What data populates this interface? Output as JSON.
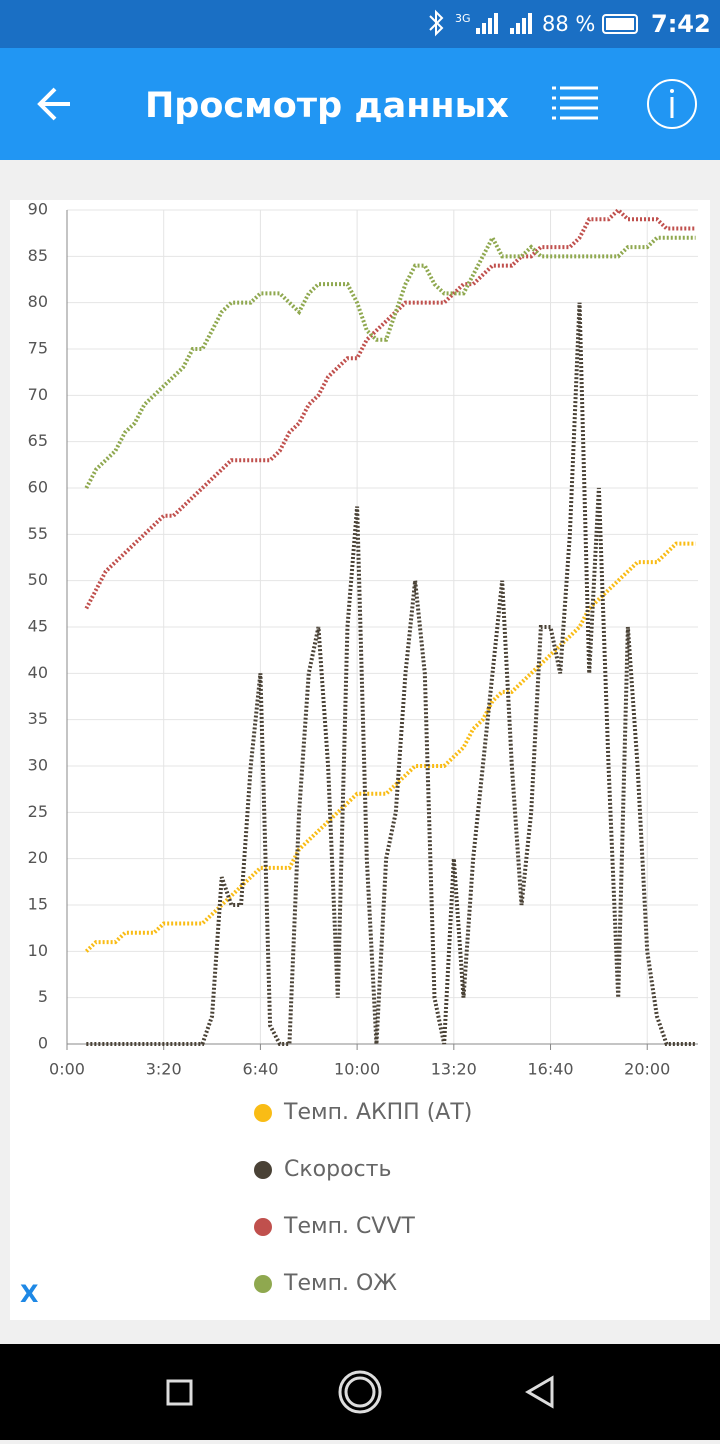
{
  "status_bar": {
    "network": "3G",
    "battery": "88 %",
    "time": "7:42"
  },
  "app_bar": {
    "title": "Просмотр данных"
  },
  "close_button": "X",
  "chart_data": {
    "type": "line",
    "x": [
      40,
      60,
      80,
      100,
      120,
      140,
      160,
      180,
      200,
      220,
      240,
      260,
      280,
      300,
      320,
      340,
      360,
      380,
      400,
      420,
      440,
      460,
      480,
      500,
      520,
      540,
      560,
      580,
      600,
      620,
      640,
      660,
      680,
      700,
      720,
      740,
      760,
      780,
      800,
      820,
      840,
      860,
      880,
      900,
      920,
      940,
      960,
      980,
      1000,
      1020,
      1040,
      1060,
      1080,
      1100,
      1120,
      1140,
      1160,
      1180,
      1200,
      1220,
      1240,
      1260,
      1280,
      1300
    ],
    "series": [
      {
        "name": "Темп. АКПП (АТ)",
        "color": "#f9bc15",
        "values": [
          10,
          11,
          11,
          11,
          12,
          12,
          12,
          12,
          13,
          13,
          13,
          13,
          13,
          14,
          15,
          16,
          17,
          18,
          19,
          19,
          19,
          19,
          21,
          22,
          23,
          24,
          25,
          26,
          27,
          27,
          27,
          27,
          28,
          29,
          30,
          30,
          30,
          30,
          31,
          32,
          34,
          35,
          37,
          38,
          38,
          39,
          40,
          41,
          42,
          43,
          44,
          45,
          47,
          48,
          49,
          50,
          51,
          52,
          52,
          52,
          53,
          54,
          54,
          54
        ]
      },
      {
        "name": "Скорость",
        "color": "#4a4236",
        "values": [
          0,
          0,
          0,
          0,
          0,
          0,
          0,
          0,
          0,
          0,
          0,
          0,
          0,
          3,
          18,
          15,
          15,
          30,
          40,
          2,
          0,
          0,
          25,
          40,
          45,
          30,
          5,
          45,
          58,
          20,
          0,
          20,
          25,
          40,
          50,
          40,
          5,
          0,
          20,
          5,
          20,
          30,
          40,
          50,
          30,
          15,
          25,
          45,
          45,
          40,
          55,
          80,
          40,
          60,
          30,
          5,
          45,
          30,
          10,
          3,
          0,
          0,
          0,
          0
        ]
      },
      {
        "name": "Темп. CVVT",
        "color": "#c0504d",
        "values": [
          47,
          49,
          51,
          52,
          53,
          54,
          55,
          56,
          57,
          57,
          58,
          59,
          60,
          61,
          62,
          63,
          63,
          63,
          63,
          63,
          64,
          66,
          67,
          69,
          70,
          72,
          73,
          74,
          74,
          76,
          77,
          78,
          79,
          80,
          80,
          80,
          80,
          80,
          81,
          82,
          82,
          83,
          84,
          84,
          84,
          85,
          85,
          86,
          86,
          86,
          86,
          87,
          89,
          89,
          89,
          90,
          89,
          89,
          89,
          89,
          88,
          88,
          88,
          88
        ]
      },
      {
        "name": "Темп. ОЖ",
        "color": "#8fa84f",
        "values": [
          60,
          62,
          63,
          64,
          66,
          67,
          69,
          70,
          71,
          72,
          73,
          75,
          75,
          77,
          79,
          80,
          80,
          80,
          81,
          81,
          81,
          80,
          79,
          81,
          82,
          82,
          82,
          82,
          80,
          77,
          76,
          76,
          79,
          82,
          84,
          84,
          82,
          81,
          81,
          81,
          83,
          85,
          87,
          85,
          85,
          85,
          86,
          85,
          85,
          85,
          85,
          85,
          85,
          85,
          85,
          85,
          86,
          86,
          86,
          87,
          87,
          87,
          87,
          87
        ]
      }
    ],
    "xlim": [
      0,
      1305
    ],
    "xticks": [
      {
        "value": 0,
        "label": "0:00"
      },
      {
        "value": 200,
        "label": "3:20"
      },
      {
        "value": 400,
        "label": "6:40"
      },
      {
        "value": 600,
        "label": "10:00"
      },
      {
        "value": 800,
        "label": "13:20"
      },
      {
        "value": 1000,
        "label": "16:40"
      },
      {
        "value": 1200,
        "label": "20:00"
      }
    ],
    "ylim": [
      0,
      90
    ],
    "yticks": [
      0,
      5,
      10,
      15,
      20,
      25,
      30,
      35,
      40,
      45,
      50,
      55,
      60,
      65,
      70,
      75,
      80,
      85,
      90
    ],
    "grid": true,
    "legend": "bottom"
  }
}
